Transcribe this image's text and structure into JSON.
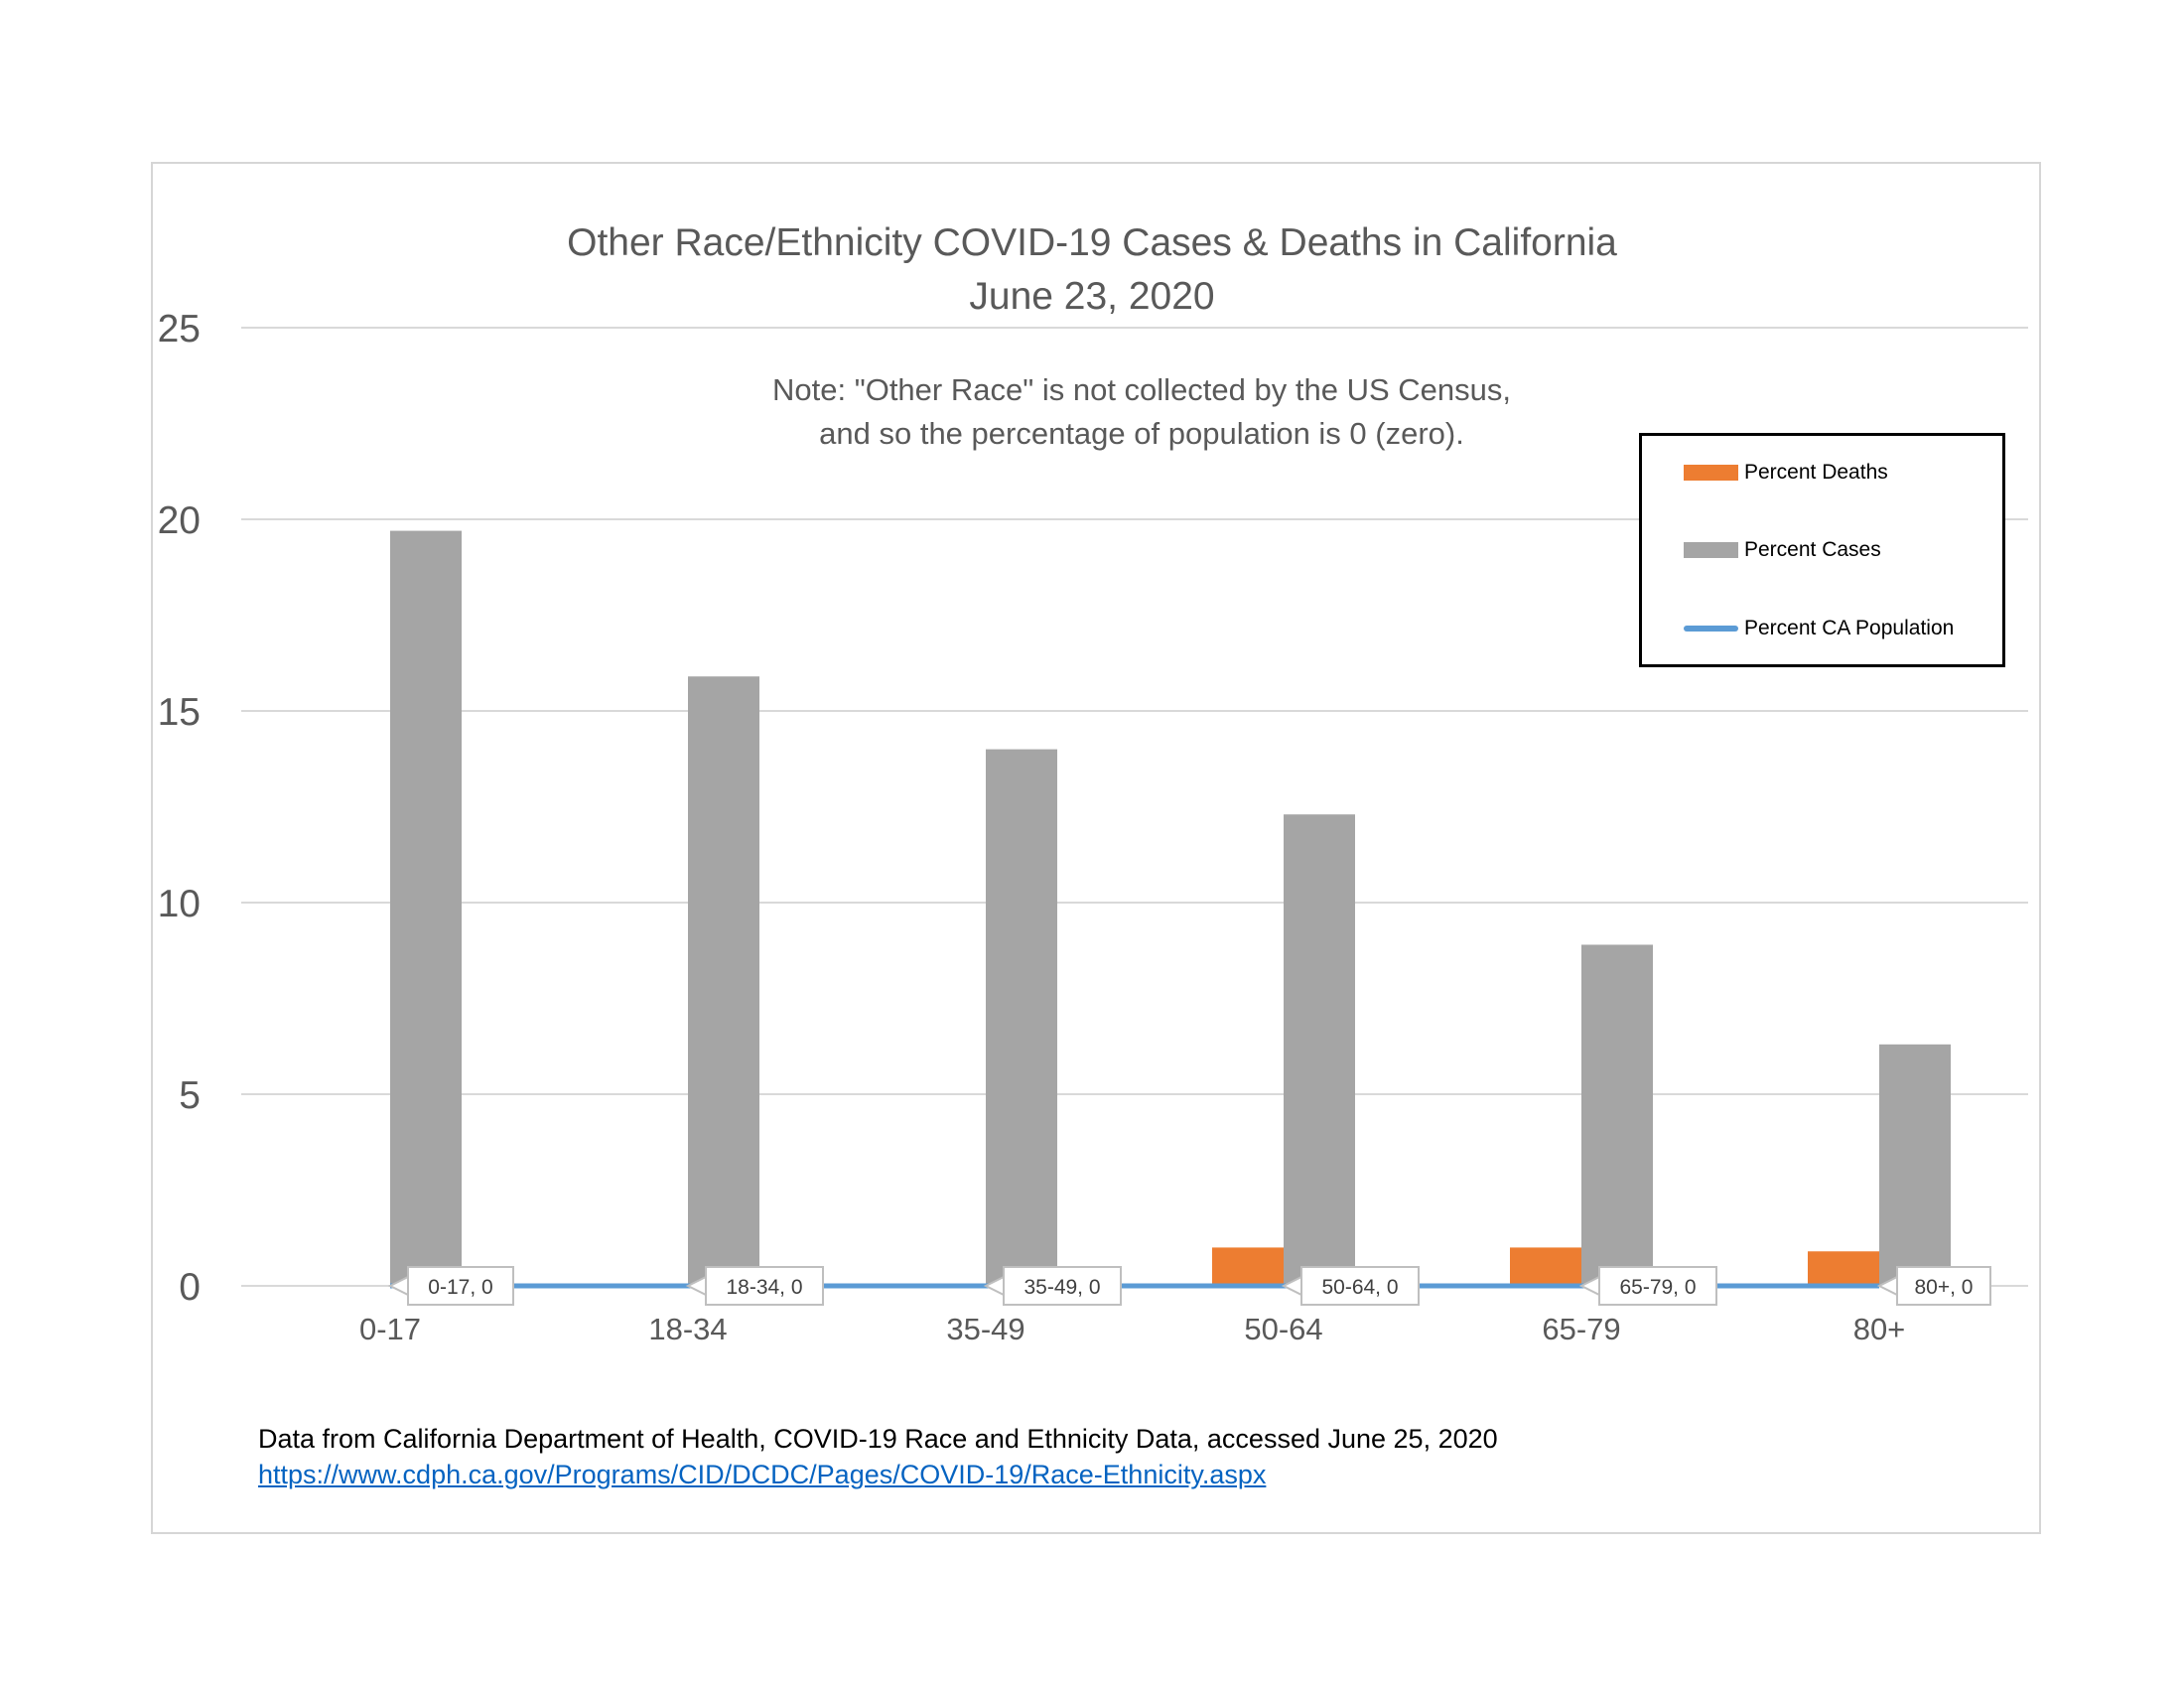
{
  "chart_data": {
    "type": "bar",
    "title": "Other Race/Ethnicity COVID-19 Cases & Deaths in California",
    "subtitle": "June 23, 2020",
    "note_lines": [
      "Note: \"Other Race\" is not collected by the US Census,",
      "and so the percentage of population is 0 (zero)."
    ],
    "categories": [
      "0-17",
      "18-34",
      "35-49",
      "50-64",
      "65-79",
      "80+"
    ],
    "series": [
      {
        "name": "Percent Deaths",
        "type": "bar",
        "color": "#ed7d31",
        "values": [
          0,
          0,
          0,
          1.0,
          1.0,
          0.9
        ]
      },
      {
        "name": "Percent Cases",
        "type": "bar",
        "color": "#a5a5a5",
        "values": [
          19.7,
          15.9,
          14.0,
          12.3,
          8.9,
          6.3
        ]
      },
      {
        "name": "Percent CA Population",
        "type": "line",
        "color": "#5b9bd5",
        "values": [
          0,
          0,
          0,
          0,
          0,
          0
        ]
      }
    ],
    "data_labels": [
      "0-17, 0",
      "18-34, 0",
      "35-49, 0",
      "50-64, 0",
      "65-79, 0",
      "80+, 0"
    ],
    "yticks": [
      "0",
      "5",
      "10",
      "15",
      "20",
      "25"
    ],
    "ylim": [
      0,
      25
    ],
    "grid": true,
    "legend_position": "top-right"
  },
  "legend_items": [
    {
      "label": "Percent Deaths",
      "color": "#ed7d31",
      "kind": "bar"
    },
    {
      "label": "Percent Cases",
      "color": "#a5a5a5",
      "kind": "bar"
    },
    {
      "label": "Percent CA Population",
      "color": "#5b9bd5",
      "kind": "line"
    }
  ],
  "source": {
    "text": "Data from California Department of Health, COVID-19 Race and Ethnicity Data, accessed June 25, 2020",
    "link": "https://www.cdph.ca.gov/Programs/CID/DCDC/Pages/COVID-19/Race-Ethnicity.aspx"
  }
}
